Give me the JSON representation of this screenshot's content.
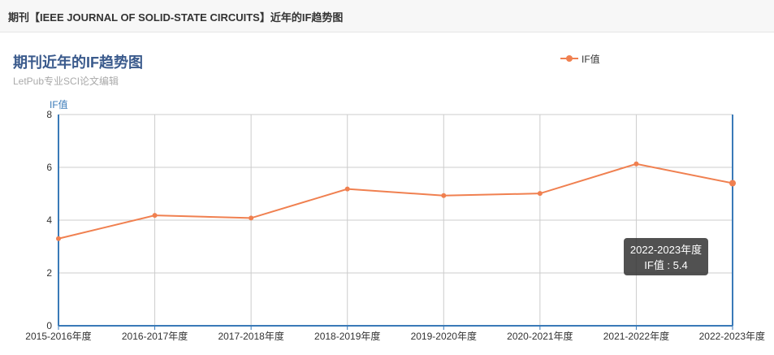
{
  "header": {
    "title": "期刊【IEEE JOURNAL OF SOLID-STATE CIRCUITS】近年的IF趋势图"
  },
  "chart_data": {
    "type": "line",
    "title": "期刊近年的IF趋势图",
    "subtitle": "LetPub专业SCI论文编辑",
    "xlabel": "",
    "ylabel": "IF值",
    "categories": [
      "2015-2016年度",
      "2016-2017年度",
      "2017-2018年度",
      "2018-2019年度",
      "2019-2020年度",
      "2020-2021年度",
      "2021-2022年度",
      "2022-2023年度"
    ],
    "series": [
      {
        "name": "IF值",
        "values": [
          3.3,
          4.18,
          4.08,
          5.18,
          4.93,
          5.01,
          6.13,
          5.4
        ],
        "color": "#f08050"
      }
    ],
    "ylim": [
      0,
      8
    ],
    "yticks": [
      0,
      2,
      4,
      6,
      8
    ],
    "grid": true,
    "legend_position": "top-right"
  },
  "tooltip": {
    "category": "2022-2023年度",
    "label": "IF值 : 5.4"
  },
  "colors": {
    "line": "#f08050",
    "axis": "#3a7ab8",
    "grid": "#cccccc",
    "title": "#3a5a8c"
  }
}
